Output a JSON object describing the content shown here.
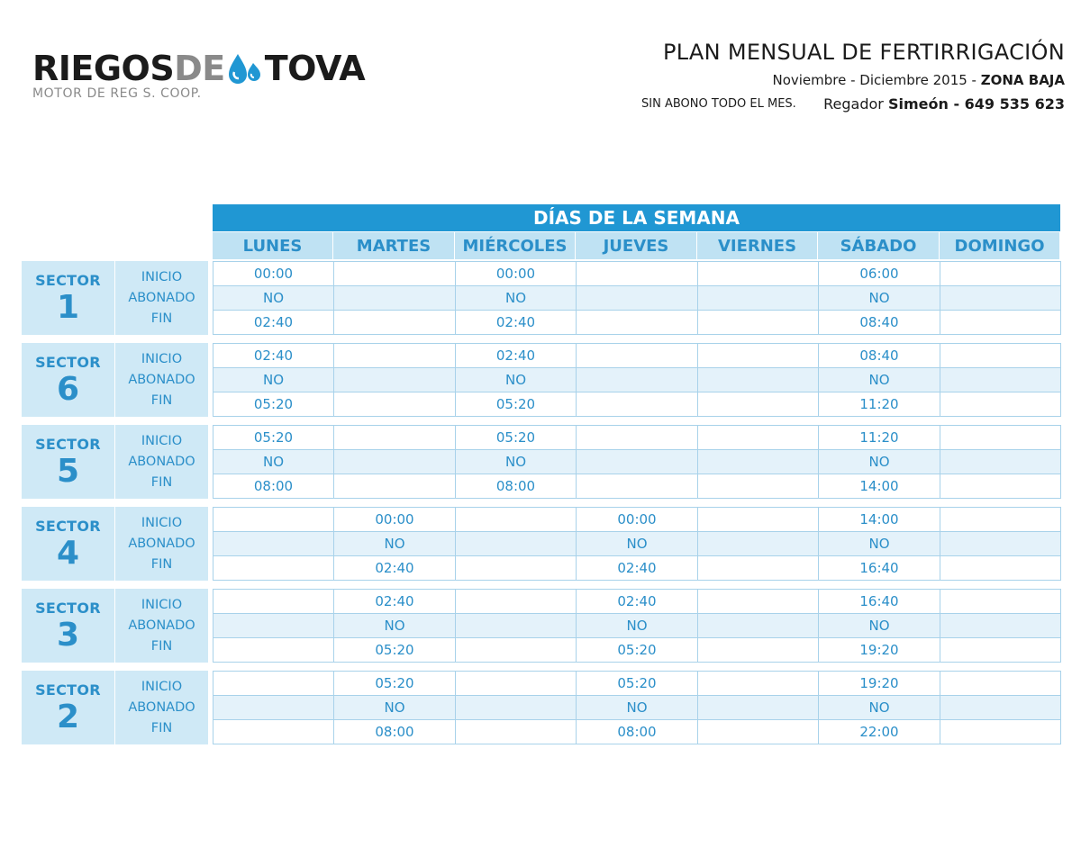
{
  "logo": {
    "part1": "RIEGOS",
    "part2": "DE",
    "part3": "TOVA",
    "subtitle": "MOTOR DE REG S. COOP."
  },
  "header": {
    "title": "PLAN MENSUAL DE FERTIRRIGACIÓN",
    "period_prefix": "Noviembre - Diciembre 2015 - ",
    "period_zone": "ZONA BAJA",
    "note": "SIN ABONO TODO EL MES.",
    "regador_label": "Regador ",
    "regador_name": "Simeón - 649 535 623"
  },
  "colors": {
    "accent": "#2097d3",
    "light": "#bfe2f3",
    "text_blue": "#2b8fc9"
  },
  "days_title": "DÍAS DE LA SEMANA",
  "days": [
    "LUNES",
    "MARTES",
    "MIÉRCOLES",
    "JUEVES",
    "VIERNES",
    "SÁBADO",
    "DOMINGO"
  ],
  "row_labels": [
    "INICIO",
    "ABONADO",
    "FIN"
  ],
  "sector_word": "SECTOR",
  "sectors": [
    {
      "number": "1",
      "cells": [
        [
          "00:00",
          "",
          "00:00",
          "",
          "",
          "06:00",
          ""
        ],
        [
          "NO",
          "",
          "NO",
          "",
          "",
          "NO",
          ""
        ],
        [
          "02:40",
          "",
          "02:40",
          "",
          "",
          "08:40",
          ""
        ]
      ]
    },
    {
      "number": "6",
      "cells": [
        [
          "02:40",
          "",
          "02:40",
          "",
          "",
          "08:40",
          ""
        ],
        [
          "NO",
          "",
          "NO",
          "",
          "",
          "NO",
          ""
        ],
        [
          "05:20",
          "",
          "05:20",
          "",
          "",
          "11:20",
          ""
        ]
      ]
    },
    {
      "number": "5",
      "cells": [
        [
          "05:20",
          "",
          "05:20",
          "",
          "",
          "11:20",
          ""
        ],
        [
          "NO",
          "",
          "NO",
          "",
          "",
          "NO",
          ""
        ],
        [
          "08:00",
          "",
          "08:00",
          "",
          "",
          "14:00",
          ""
        ]
      ]
    },
    {
      "number": "4",
      "cells": [
        [
          "",
          "00:00",
          "",
          "00:00",
          "",
          "14:00",
          ""
        ],
        [
          "",
          "NO",
          "",
          "NO",
          "",
          "NO",
          ""
        ],
        [
          "",
          "02:40",
          "",
          "02:40",
          "",
          "16:40",
          ""
        ]
      ]
    },
    {
      "number": "3",
      "cells": [
        [
          "",
          "02:40",
          "",
          "02:40",
          "",
          "16:40",
          ""
        ],
        [
          "",
          "NO",
          "",
          "NO",
          "",
          "NO",
          ""
        ],
        [
          "",
          "05:20",
          "",
          "05:20",
          "",
          "19:20",
          ""
        ]
      ]
    },
    {
      "number": "2",
      "cells": [
        [
          "",
          "05:20",
          "",
          "05:20",
          "",
          "19:20",
          ""
        ],
        [
          "",
          "NO",
          "",
          "NO",
          "",
          "NO",
          ""
        ],
        [
          "",
          "08:00",
          "",
          "08:00",
          "",
          "22:00",
          ""
        ]
      ]
    }
  ]
}
